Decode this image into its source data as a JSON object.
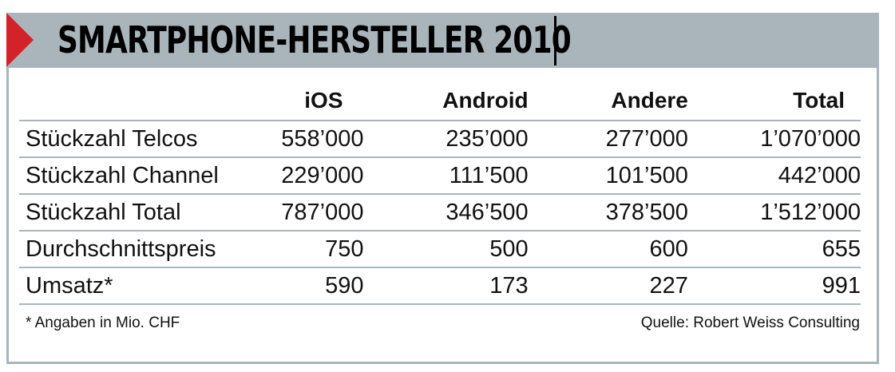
{
  "title": "SMARTPHONE-HERSTELLER 2010",
  "table": {
    "headers": [
      "",
      "iOS",
      "Android",
      "Andere",
      "Total"
    ],
    "rows": [
      {
        "label": "Stückzahl Telcos",
        "values": [
          "558’000",
          "235’000",
          "277’000",
          "1’070’000"
        ]
      },
      {
        "label": "Stückzahl Channel",
        "values": [
          "229’000",
          "111’500",
          "101’500",
          "442’000"
        ]
      },
      {
        "label": "Stückzahl Total",
        "values": [
          "787’000",
          "346’500",
          "378’500",
          "1’512’000"
        ]
      },
      {
        "label": "Durchschnittspreis",
        "values": [
          "750",
          "500",
          "600",
          "655"
        ]
      },
      {
        "label": "Umsatz*",
        "values": [
          "590",
          "173",
          "227",
          "991"
        ]
      }
    ]
  },
  "footnote": "* Angaben in Mio. CHF",
  "source": "Quelle: Robert Weiss Consulting",
  "colors": {
    "accent": "#d3222a",
    "header_bar": "#a9b5bb",
    "rule": "#a9b5bb"
  }
}
